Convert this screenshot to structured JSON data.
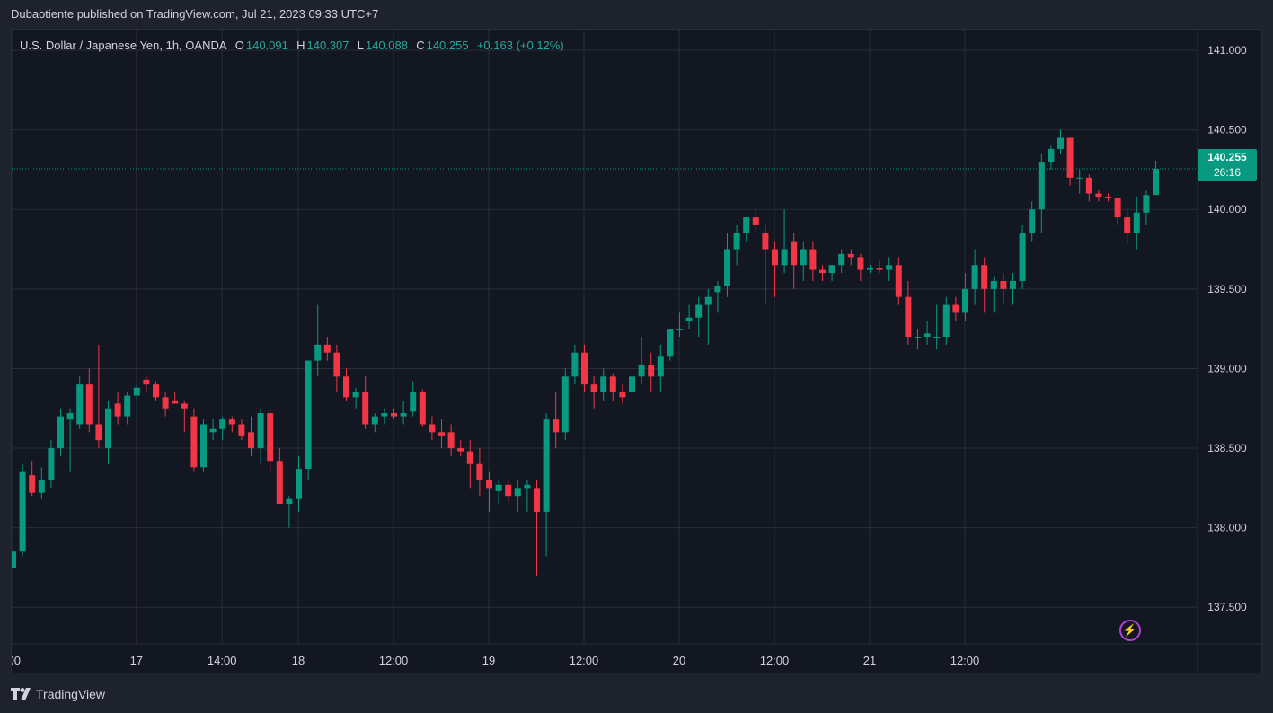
{
  "header": {
    "published": "Dubaotiente published on TradingView.com, Jul 21, 2023 09:33 UTC+7"
  },
  "legend": {
    "symbol": "U.S. Dollar / Japanese Yen, 1h, OANDA",
    "o_label": "O",
    "o_value": "140.091",
    "h_label": "H",
    "h_value": "140.307",
    "l_label": "L",
    "l_value": "140.088",
    "c_label": "C",
    "c_value": "140.255",
    "change": "+0.163 (+0.12%)"
  },
  "price_tag": {
    "price": "140.255",
    "countdown": "26:16"
  },
  "footer": {
    "brand": "TradingView"
  },
  "colors": {
    "up": "#089981",
    "down": "#f23645",
    "grid": "#2a2e39",
    "background": "#131722",
    "text": "#d1d4dc",
    "alert": "#b040d8"
  },
  "icons": {
    "alert": "lightning-bolt-icon",
    "logo": "tradingview-logo-icon"
  },
  "chart_data": {
    "type": "candlestick",
    "title": "U.S. Dollar / Japanese Yen, 1h, OANDA",
    "ylim": [
      137.27,
      141.13
    ],
    "y_ticks": [
      "137.500",
      "138.000",
      "138.500",
      "139.000",
      "139.500",
      "140.000",
      "140.500",
      "141.000"
    ],
    "x_ticks": [
      ":00",
      "17",
      "14:00",
      "18",
      "12:00",
      "19",
      "12:00",
      "20",
      "12:00",
      "21",
      "12:00"
    ],
    "x_tick_index": [
      0,
      13,
      22,
      30,
      40,
      50,
      60,
      70,
      80,
      90,
      100
    ],
    "last_price": 140.255,
    "grid": true,
    "candles": [
      [
        137.75,
        137.95,
        137.6,
        137.85
      ],
      [
        137.85,
        138.4,
        137.82,
        138.35
      ],
      [
        138.33,
        138.42,
        138.2,
        138.22
      ],
      [
        138.22,
        138.38,
        138.18,
        138.3
      ],
      [
        138.3,
        138.55,
        138.25,
        138.5
      ],
      [
        138.5,
        138.75,
        138.45,
        138.7
      ],
      [
        138.68,
        138.75,
        138.35,
        138.72
      ],
      [
        138.65,
        138.95,
        138.62,
        138.9
      ],
      [
        138.9,
        139.0,
        138.6,
        138.65
      ],
      [
        138.65,
        139.15,
        138.5,
        138.55
      ],
      [
        138.5,
        138.8,
        138.4,
        138.75
      ],
      [
        138.78,
        138.85,
        138.65,
        138.7
      ],
      [
        138.7,
        138.85,
        138.65,
        138.83
      ],
      [
        138.83,
        138.9,
        138.8,
        138.88
      ],
      [
        138.93,
        138.95,
        138.85,
        138.9
      ],
      [
        138.9,
        138.92,
        138.8,
        138.82
      ],
      [
        138.82,
        138.85,
        138.7,
        138.75
      ],
      [
        138.8,
        138.85,
        138.78,
        138.78
      ],
      [
        138.78,
        138.8,
        138.6,
        138.75
      ],
      [
        138.7,
        138.75,
        138.35,
        138.38
      ],
      [
        138.38,
        138.68,
        138.35,
        138.65
      ],
      [
        138.6,
        138.68,
        138.55,
        138.62
      ],
      [
        138.62,
        138.7,
        138.55,
        138.68
      ],
      [
        138.68,
        138.7,
        138.6,
        138.65
      ],
      [
        138.65,
        138.68,
        138.55,
        138.58
      ],
      [
        138.6,
        138.7,
        138.45,
        138.5
      ],
      [
        138.5,
        138.75,
        138.4,
        138.72
      ],
      [
        138.72,
        138.75,
        138.35,
        138.42
      ],
      [
        138.42,
        138.5,
        138.15,
        138.15
      ],
      [
        138.15,
        138.2,
        138.0,
        138.18
      ],
      [
        138.18,
        138.45,
        138.1,
        138.37
      ],
      [
        138.37,
        139.05,
        138.3,
        139.05
      ],
      [
        139.05,
        139.4,
        138.95,
        139.15
      ],
      [
        139.15,
        139.2,
        139.05,
        139.1
      ],
      [
        139.1,
        139.15,
        138.85,
        138.95
      ],
      [
        138.95,
        139.0,
        138.8,
        138.82
      ],
      [
        138.82,
        138.88,
        138.75,
        138.85
      ],
      [
        138.85,
        138.95,
        138.62,
        138.65
      ],
      [
        138.65,
        138.72,
        138.6,
        138.7
      ],
      [
        138.7,
        138.75,
        138.65,
        138.72
      ],
      [
        138.72,
        138.75,
        138.68,
        138.7
      ],
      [
        138.7,
        138.8,
        138.65,
        138.72
      ],
      [
        138.73,
        138.92,
        138.7,
        138.85
      ],
      [
        138.85,
        138.87,
        138.63,
        138.65
      ],
      [
        138.65,
        138.7,
        138.55,
        138.6
      ],
      [
        138.6,
        138.68,
        138.5,
        138.58
      ],
      [
        138.6,
        138.65,
        138.45,
        138.5
      ],
      [
        138.5,
        138.55,
        138.45,
        138.48
      ],
      [
        138.48,
        138.55,
        138.25,
        138.4
      ],
      [
        138.4,
        138.5,
        138.2,
        138.3
      ],
      [
        138.3,
        138.35,
        138.1,
        138.25
      ],
      [
        138.23,
        138.3,
        138.15,
        138.27
      ],
      [
        138.27,
        138.3,
        138.15,
        138.2
      ],
      [
        138.2,
        138.3,
        138.1,
        138.25
      ],
      [
        138.25,
        138.3,
        138.1,
        138.27
      ],
      [
        138.25,
        138.3,
        137.7,
        138.1
      ],
      [
        138.1,
        138.72,
        137.82,
        138.68
      ],
      [
        138.68,
        138.85,
        138.5,
        138.6
      ],
      [
        138.6,
        139.0,
        138.55,
        138.95
      ],
      [
        138.95,
        139.15,
        138.9,
        139.1
      ],
      [
        139.1,
        139.15,
        138.85,
        138.9
      ],
      [
        138.9,
        138.95,
        138.75,
        138.85
      ],
      [
        138.85,
        139.0,
        138.8,
        138.95
      ],
      [
        138.95,
        138.97,
        138.8,
        138.85
      ],
      [
        138.85,
        138.9,
        138.78,
        138.82
      ],
      [
        138.85,
        139.0,
        138.8,
        138.95
      ],
      [
        138.95,
        139.2,
        138.9,
        139.02
      ],
      [
        139.02,
        139.1,
        138.85,
        138.95
      ],
      [
        138.95,
        139.15,
        138.85,
        139.08
      ],
      [
        139.08,
        139.25,
        139.05,
        139.25
      ],
      [
        139.25,
        139.35,
        139.2,
        139.25
      ],
      [
        139.3,
        139.4,
        139.25,
        139.32
      ],
      [
        139.32,
        139.45,
        139.2,
        139.4
      ],
      [
        139.4,
        139.5,
        139.15,
        139.45
      ],
      [
        139.48,
        139.55,
        139.35,
        139.52
      ],
      [
        139.52,
        139.85,
        139.45,
        139.75
      ],
      [
        139.75,
        139.9,
        139.65,
        139.85
      ],
      [
        139.85,
        139.95,
        139.8,
        139.95
      ],
      [
        139.95,
        140.0,
        139.85,
        139.9
      ],
      [
        139.85,
        139.9,
        139.4,
        139.75
      ],
      [
        139.75,
        139.8,
        139.45,
        139.65
      ],
      [
        139.65,
        140.0,
        139.6,
        139.75
      ],
      [
        139.8,
        139.85,
        139.5,
        139.65
      ],
      [
        139.65,
        139.8,
        139.55,
        139.75
      ],
      [
        139.75,
        139.8,
        139.55,
        139.62
      ],
      [
        139.62,
        139.65,
        139.55,
        139.6
      ],
      [
        139.6,
        139.65,
        139.55,
        139.65
      ],
      [
        139.65,
        139.75,
        139.6,
        139.72
      ],
      [
        139.72,
        139.75,
        139.65,
        139.7
      ],
      [
        139.7,
        139.72,
        139.55,
        139.62
      ],
      [
        139.62,
        139.65,
        139.6,
        139.63
      ],
      [
        139.63,
        139.68,
        139.6,
        139.62
      ],
      [
        139.62,
        139.7,
        139.55,
        139.65
      ],
      [
        139.65,
        139.7,
        139.4,
        139.45
      ],
      [
        139.45,
        139.55,
        139.15,
        139.2
      ],
      [
        139.2,
        139.25,
        139.12,
        139.2
      ],
      [
        139.2,
        139.3,
        139.15,
        139.22
      ],
      [
        139.2,
        139.4,
        139.12,
        139.2
      ],
      [
        139.2,
        139.45,
        139.15,
        139.4
      ],
      [
        139.4,
        139.45,
        139.3,
        139.35
      ],
      [
        139.35,
        139.6,
        139.3,
        139.5
      ],
      [
        139.5,
        139.75,
        139.4,
        139.65
      ],
      [
        139.65,
        139.7,
        139.35,
        139.5
      ],
      [
        139.5,
        139.58,
        139.35,
        139.55
      ],
      [
        139.55,
        139.6,
        139.4,
        139.5
      ],
      [
        139.5,
        139.6,
        139.4,
        139.55
      ],
      [
        139.55,
        139.9,
        139.5,
        139.85
      ],
      [
        139.85,
        140.05,
        139.8,
        140.0
      ],
      [
        140.0,
        140.35,
        139.85,
        140.3
      ],
      [
        140.3,
        140.4,
        140.25,
        140.38
      ],
      [
        140.38,
        140.5,
        140.35,
        140.45
      ],
      [
        140.45,
        140.45,
        140.15,
        140.2
      ],
      [
        140.2,
        140.25,
        140.1,
        140.2
      ],
      [
        140.2,
        140.22,
        140.05,
        140.1
      ],
      [
        140.1,
        140.12,
        140.05,
        140.08
      ],
      [
        140.08,
        140.1,
        140.05,
        140.07
      ],
      [
        140.07,
        140.08,
        139.9,
        139.95
      ],
      [
        139.95,
        140.0,
        139.78,
        139.85
      ],
      [
        139.85,
        140.08,
        139.75,
        139.98
      ],
      [
        139.98,
        140.12,
        139.9,
        140.09
      ],
      [
        140.091,
        140.307,
        140.088,
        140.255
      ]
    ]
  }
}
